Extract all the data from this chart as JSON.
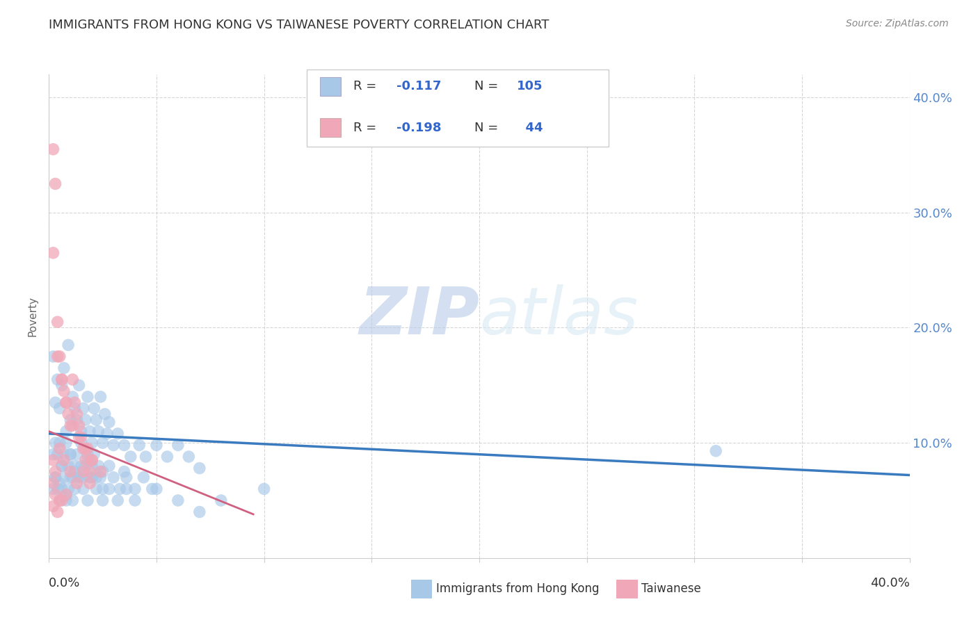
{
  "title": "IMMIGRANTS FROM HONG KONG VS TAIWANESE POVERTY CORRELATION CHART",
  "source": "Source: ZipAtlas.com",
  "ylabel": "Poverty",
  "xmin": 0.0,
  "xmax": 0.4,
  "ymin": 0.0,
  "ymax": 0.42,
  "yticks_right": [
    0.1,
    0.2,
    0.3,
    0.4
  ],
  "ytick_labels_right": [
    "10.0%",
    "20.0%",
    "30.0%",
    "40.0%"
  ],
  "blue_color": "#a8c8e8",
  "pink_color": "#f0a8b8",
  "blue_line_color": "#3a7abf",
  "pink_line_color": "#d06080",
  "watermark_zip": "ZIP",
  "watermark_atlas": "atlas",
  "blue_scatter_x": [
    0.002,
    0.003,
    0.004,
    0.005,
    0.006,
    0.007,
    0.008,
    0.009,
    0.01,
    0.011,
    0.012,
    0.013,
    0.014,
    0.015,
    0.016,
    0.017,
    0.018,
    0.019,
    0.02,
    0.021,
    0.022,
    0.023,
    0.024,
    0.025,
    0.026,
    0.027,
    0.028,
    0.03,
    0.032,
    0.035,
    0.038,
    0.042,
    0.045,
    0.05,
    0.055,
    0.06,
    0.065,
    0.07,
    0.002,
    0.003,
    0.004,
    0.005,
    0.006,
    0.007,
    0.008,
    0.009,
    0.01,
    0.011,
    0.012,
    0.013,
    0.014,
    0.015,
    0.016,
    0.017,
    0.018,
    0.019,
    0.02,
    0.021,
    0.022,
    0.023,
    0.024,
    0.025,
    0.028,
    0.03,
    0.033,
    0.036,
    0.04,
    0.044,
    0.048,
    0.002,
    0.003,
    0.004,
    0.005,
    0.006,
    0.007,
    0.008,
    0.009,
    0.01,
    0.011,
    0.012,
    0.014,
    0.016,
    0.018,
    0.02,
    0.022,
    0.025,
    0.028,
    0.032,
    0.036,
    0.04,
    0.05,
    0.06,
    0.07,
    0.08,
    0.1,
    0.003,
    0.006,
    0.01,
    0.015,
    0.31,
    0.005,
    0.008,
    0.012,
    0.018,
    0.025,
    0.035
  ],
  "blue_scatter_y": [
    0.175,
    0.135,
    0.155,
    0.13,
    0.15,
    0.165,
    0.11,
    0.185,
    0.12,
    0.14,
    0.13,
    0.12,
    0.15,
    0.11,
    0.13,
    0.12,
    0.14,
    0.11,
    0.1,
    0.13,
    0.12,
    0.11,
    0.14,
    0.1,
    0.125,
    0.108,
    0.118,
    0.098,
    0.108,
    0.098,
    0.088,
    0.098,
    0.088,
    0.098,
    0.088,
    0.098,
    0.088,
    0.078,
    0.09,
    0.1,
    0.09,
    0.1,
    0.08,
    0.09,
    0.1,
    0.08,
    0.09,
    0.07,
    0.08,
    0.09,
    0.07,
    0.08,
    0.07,
    0.08,
    0.09,
    0.07,
    0.08,
    0.09,
    0.07,
    0.08,
    0.07,
    0.06,
    0.08,
    0.07,
    0.06,
    0.07,
    0.06,
    0.07,
    0.06,
    0.06,
    0.07,
    0.06,
    0.05,
    0.06,
    0.07,
    0.05,
    0.06,
    0.07,
    0.05,
    0.06,
    0.07,
    0.06,
    0.05,
    0.07,
    0.06,
    0.05,
    0.06,
    0.05,
    0.06,
    0.05,
    0.06,
    0.05,
    0.04,
    0.05,
    0.06,
    0.07,
    0.08,
    0.09,
    0.1,
    0.093,
    0.065,
    0.055,
    0.075,
    0.085,
    0.075,
    0.075
  ],
  "pink_scatter_x": [
    0.002,
    0.003,
    0.004,
    0.005,
    0.006,
    0.007,
    0.008,
    0.009,
    0.01,
    0.011,
    0.012,
    0.013,
    0.014,
    0.015,
    0.016,
    0.017,
    0.018,
    0.019,
    0.02,
    0.002,
    0.004,
    0.006,
    0.008,
    0.011,
    0.014,
    0.017,
    0.02,
    0.024,
    0.002,
    0.003,
    0.005,
    0.007,
    0.01,
    0.013,
    0.016,
    0.019,
    0.002,
    0.003,
    0.005,
    0.002,
    0.004,
    0.006,
    0.008
  ],
  "pink_scatter_y": [
    0.355,
    0.325,
    0.205,
    0.175,
    0.155,
    0.145,
    0.135,
    0.125,
    0.115,
    0.155,
    0.135,
    0.125,
    0.115,
    0.105,
    0.095,
    0.085,
    0.095,
    0.075,
    0.085,
    0.265,
    0.175,
    0.155,
    0.135,
    0.115,
    0.105,
    0.095,
    0.085,
    0.075,
    0.085,
    0.075,
    0.095,
    0.085,
    0.075,
    0.065,
    0.075,
    0.065,
    0.065,
    0.055,
    0.05,
    0.045,
    0.04,
    0.05,
    0.055
  ],
  "blue_line_x": [
    0.0,
    0.4
  ],
  "blue_line_y": [
    0.108,
    0.072
  ],
  "pink_line_x": [
    0.0,
    0.095
  ],
  "pink_line_y": [
    0.11,
    0.038
  ],
  "background_color": "#ffffff",
  "grid_color": "#cccccc",
  "title_color": "#333333",
  "axis_label_color": "#666666"
}
